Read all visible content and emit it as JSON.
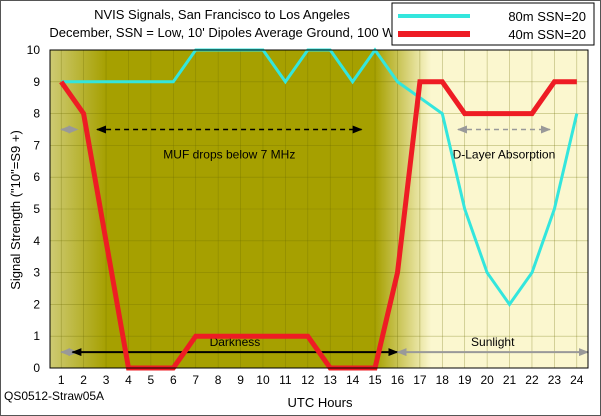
{
  "chart_data": {
    "type": "line",
    "title": "NVIS Signals, San Francisco to Los Angeles",
    "subtitle": "December, SSN = Low, 10' Dipoles Average Ground, 100 W",
    "xlabel": "UTC Hours",
    "ylabel": "Signal Strength (\"10\"=S9 +)",
    "x": [
      1,
      2,
      3,
      4,
      5,
      6,
      7,
      8,
      9,
      10,
      11,
      12,
      13,
      14,
      15,
      16,
      17,
      18,
      19,
      20,
      21,
      22,
      23,
      24
    ],
    "xlim": [
      1,
      24
    ],
    "ylim": [
      0,
      10
    ],
    "yticks": [
      0,
      1,
      2,
      3,
      4,
      5,
      6,
      7,
      8,
      9,
      10
    ],
    "grid": true,
    "legend_position": "top-right",
    "series": [
      {
        "name": "80m SSN=20",
        "color": "#33e6dd",
        "values": [
          9,
          9,
          9,
          9,
          9,
          9,
          10,
          10,
          10,
          10,
          9,
          10,
          10,
          9,
          10,
          9,
          8.5,
          8,
          5,
          3,
          2,
          3,
          5,
          8
        ]
      },
      {
        "name": "40m SSN=20",
        "color": "#ee1c24",
        "values": [
          9,
          8,
          4,
          0,
          0,
          0,
          1,
          1,
          1,
          1,
          1,
          1,
          0,
          0,
          0,
          3,
          9,
          9,
          8,
          8,
          8,
          8,
          9,
          9
        ]
      }
    ],
    "annotations": [
      {
        "text": "MUF drops below 7 MHz",
        "x_range": [
          2.6,
          14.4
        ],
        "y": 7.5,
        "style": "dashed-black"
      },
      {
        "text": "D-Layer Absorption",
        "x_range": [
          18.7,
          22.8
        ],
        "y": 7.5,
        "style": "dashed-gray"
      },
      {
        "text": "Darkness",
        "x_range": [
          1.5,
          16
        ],
        "y": 0.5,
        "style": "solid-black"
      },
      {
        "text": "Sunlight",
        "x_range": [
          16,
          24.5
        ],
        "y": 0.5,
        "style": "solid-gray"
      }
    ],
    "gray_arrows": [
      {
        "x_range": [
          1,
          2
        ],
        "y": 7.5
      },
      {
        "x_range": [
          1,
          2
        ],
        "y": 0.5
      }
    ],
    "background": {
      "dark_color": "#a6a000",
      "light_color": "#fbf7cf",
      "dark_start_hour": 3,
      "dark_end_hour": 15
    },
    "footer_code": "QS0512-Straw05A"
  }
}
